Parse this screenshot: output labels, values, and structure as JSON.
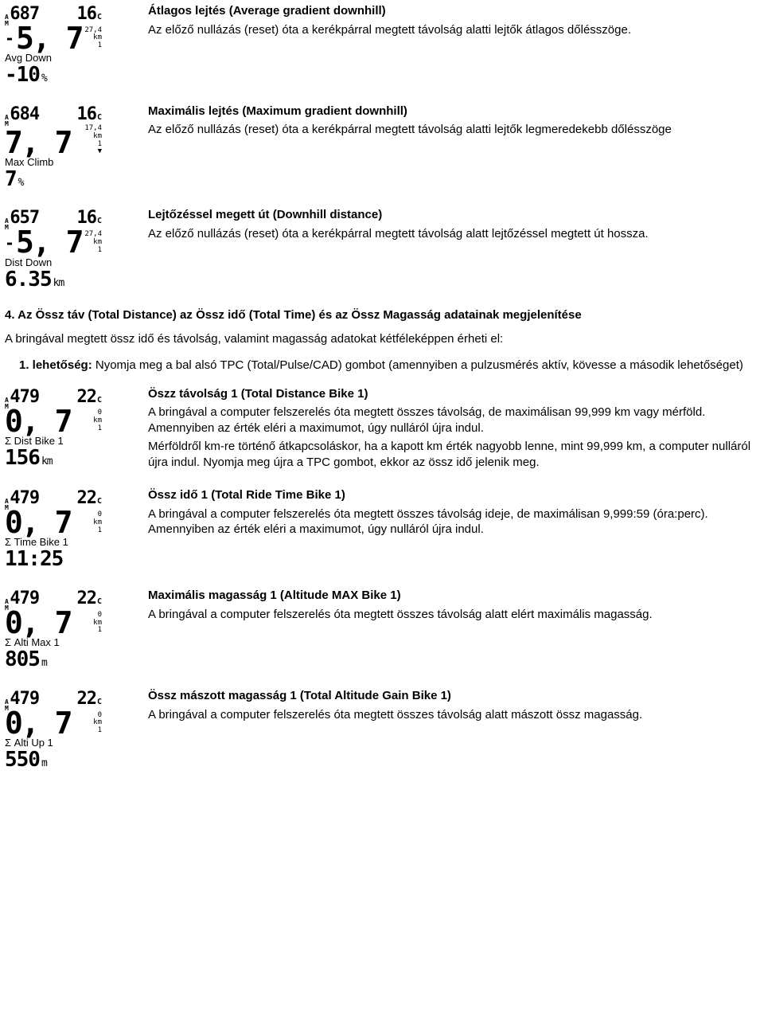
{
  "blocks": [
    {
      "title": "Átlagos lejtés (Average gradient downhill)",
      "body": "Az előző nullázás (reset) óta a kerékpárral megtett távolság alatti lejtők átlagos dőlésszöge.",
      "lcd": {
        "tl": "687",
        "tr": "16",
        "speed": "5, 7",
        "dash": "-",
        "sub_top": "27,4",
        "sub_mid": "km",
        "sub_bot": "1",
        "label": "Avg Down",
        "big": "-10",
        "unit": "%",
        "arrow": ""
      }
    },
    {
      "title": "Maximális lejtés (Maximum gradient downhill)",
      "body": "Az előző nullázás (reset) óta a kerékpárral megtett távolság alatti lejtők legmeredekebb dőlésszöge",
      "lcd": {
        "tl": "684",
        "tr": "16",
        "speed": "7, 7",
        "dash": "",
        "sub_top": "17,4",
        "sub_mid": "km",
        "sub_bot": "1",
        "label": "Max Climb",
        "big": "7",
        "unit": "%",
        "arrow": "▼"
      }
    },
    {
      "title": "Lejtőzéssel megett út (Downhill distance)",
      "body": "Az előző nullázás (reset) óta a kerékpárral megtett távolság alatt lejtőzéssel megtett út hossza.",
      "lcd": {
        "tl": "657",
        "tr": "16",
        "speed": "5, 7",
        "dash": "-",
        "sub_top": "27,4",
        "sub_mid": "km",
        "sub_bot": "1",
        "label": "Dist Down",
        "big": "6.35",
        "unit": "km",
        "arrow": ""
      }
    }
  ],
  "section4_heading": "4. Az Össz táv (Total Distance) az Össz idő (Total Time) és az Össz Magasság adatainak megjelenítése",
  "section4_intro": "A bringával megtett össz idő és távolság, valamint magasság adatokat kétféleképpen érheti el:",
  "option1_label": "1. lehetőség:",
  "option1_text": " Nyomja meg a bal alsó TPC (Total/Pulse/CAD) gombot (amennyiben a pulzusmérés aktív, kövesse a második lehetőséget)",
  "blocks2": [
    {
      "title": "Öszz távolság 1 (Total Distance Bike 1)",
      "body": "A bringával a computer felszerelés óta megtett összes távolság, de maximálisan 99,999 km vagy mérföld. Amennyiben az érték eléri a maximumot, úgy nulláról újra indul.",
      "body2": "Mérföldről km-re történő átkapcsoláskor, ha a kapott km érték nagyobb lenne, mint 99,999 km, a computer nulláról újra indul. Nyomja meg újra a TPC gombot, ekkor az össz idő jelenik meg.",
      "lcd": {
        "tl": "479",
        "tr": "22",
        "speed": "0, 7",
        "dash": "",
        "sub_top": "0",
        "sub_mid": "km",
        "sub_bot": "1",
        "label": "Σ Dist Bike 1",
        "big": "156",
        "unit": "km",
        "arrow": ""
      }
    },
    {
      "title": "Össz idő 1 (Total Ride Time Bike 1)",
      "body": "A bringával a computer felszerelés óta megtett összes távolság ideje, de maximálisan 9,999:59 (óra:perc). Amennyiben az érték eléri a maximumot, úgy nulláról újra indul.",
      "body2": "",
      "lcd": {
        "tl": "479",
        "tr": "22",
        "speed": "0, 7",
        "dash": "",
        "sub_top": "0",
        "sub_mid": "km",
        "sub_bot": "1",
        "label": "Σ Time Bike 1",
        "big": "11:25",
        "unit": "",
        "arrow": ""
      }
    },
    {
      "title": "Maximális magasság 1 (Altitude MAX Bike 1)",
      "body": "A bringával a computer felszerelés óta megtett összes távolság alatt elért maximális magasság.",
      "body2": "",
      "lcd": {
        "tl": "479",
        "tr": "22",
        "speed": "0, 7",
        "dash": "",
        "sub_top": "0",
        "sub_mid": "km",
        "sub_bot": "1",
        "label": "Σ Alti Max 1",
        "big": "805",
        "unit": "m",
        "arrow": ""
      }
    },
    {
      "title": "Össz mászott magasság 1 (Total Altitude Gain Bike 1)",
      "body": "A bringával a computer felszerelés óta megtett összes távolság alatt mászott össz magasság.",
      "body2": "",
      "lcd": {
        "tl": "479",
        "tr": "22",
        "speed": "0, 7",
        "dash": "",
        "sub_top": "0",
        "sub_mid": "km",
        "sub_bot": "1",
        "label": "Σ Alti Up 1",
        "big": "550",
        "unit": "m",
        "arrow": ""
      }
    }
  ]
}
